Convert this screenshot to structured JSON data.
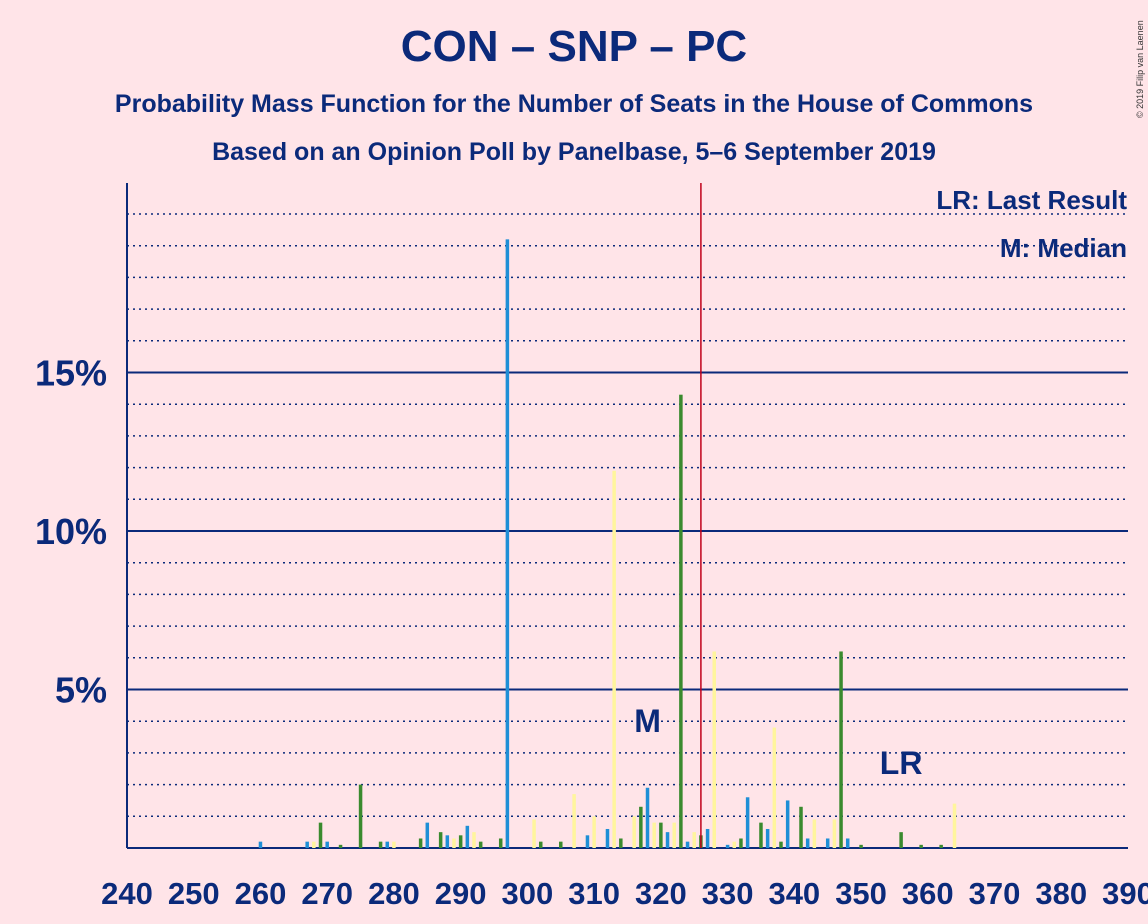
{
  "header": {
    "title": "CON – SNP – PC",
    "subtitle1": "Probability Mass Function for the Number of Seats in the House of Commons",
    "subtitle2": "Based on an Opinion Poll by Panelbase, 5–6 September 2019",
    "copyright": "© 2019 Filip van Laenen"
  },
  "colors": {
    "background": "#ffe4e8",
    "text": "#0b2a7a",
    "blue_bar": "#1f8fd6",
    "green_bar": "#3a8a2e",
    "yellow_bar": "#fff59d",
    "majority_line": "#c0001a"
  },
  "chart_data": {
    "type": "bar",
    "x_axis_range": [
      240,
      390
    ],
    "x_ticks": [
      240,
      250,
      260,
      270,
      280,
      290,
      300,
      310,
      320,
      330,
      340,
      350,
      360,
      370,
      380,
      390
    ],
    "y_axis_range_percent": [
      0,
      21
    ],
    "y_major_ticks": [
      {
        "value": 5,
        "label": "5%"
      },
      {
        "value": 10,
        "label": "10%"
      },
      {
        "value": 15,
        "label": "15%"
      }
    ],
    "y_minor_grid_step": 1,
    "majority_line_seat": 326,
    "median": {
      "seat": 318,
      "label": "M"
    },
    "last_result": {
      "seat": 356,
      "label": "LR"
    },
    "legend": {
      "placement": "top-right",
      "lines": [
        "LR: Last Result",
        "M: Median"
      ]
    },
    "points": [
      {
        "seat": 260,
        "value": 0.2,
        "color": "blue"
      },
      {
        "seat": 267,
        "value": 0.2,
        "color": "blue"
      },
      {
        "seat": 268,
        "value": 0.2,
        "color": "yellow"
      },
      {
        "seat": 269,
        "value": 0.8,
        "color": "green"
      },
      {
        "seat": 270,
        "value": 0.2,
        "color": "blue"
      },
      {
        "seat": 272,
        "value": 0.1,
        "color": "green"
      },
      {
        "seat": 275,
        "value": 2.0,
        "color": "green"
      },
      {
        "seat": 278,
        "value": 0.2,
        "color": "green"
      },
      {
        "seat": 279,
        "value": 0.2,
        "color": "blue"
      },
      {
        "seat": 280,
        "value": 0.2,
        "color": "yellow"
      },
      {
        "seat": 284,
        "value": 0.3,
        "color": "green"
      },
      {
        "seat": 285,
        "value": 0.8,
        "color": "blue"
      },
      {
        "seat": 287,
        "value": 0.5,
        "color": "green"
      },
      {
        "seat": 288,
        "value": 0.4,
        "color": "blue"
      },
      {
        "seat": 289,
        "value": 0.3,
        "color": "yellow"
      },
      {
        "seat": 290,
        "value": 0.4,
        "color": "green"
      },
      {
        "seat": 291,
        "value": 0.7,
        "color": "blue"
      },
      {
        "seat": 292,
        "value": 0.5,
        "color": "yellow"
      },
      {
        "seat": 293,
        "value": 0.2,
        "color": "green"
      },
      {
        "seat": 296,
        "value": 0.3,
        "color": "green"
      },
      {
        "seat": 297,
        "value": 19.2,
        "color": "blue"
      },
      {
        "seat": 301,
        "value": 0.9,
        "color": "yellow"
      },
      {
        "seat": 302,
        "value": 0.2,
        "color": "green"
      },
      {
        "seat": 305,
        "value": 0.2,
        "color": "green"
      },
      {
        "seat": 307,
        "value": 1.7,
        "color": "yellow"
      },
      {
        "seat": 309,
        "value": 0.4,
        "color": "blue"
      },
      {
        "seat": 310,
        "value": 1.0,
        "color": "yellow"
      },
      {
        "seat": 312,
        "value": 0.6,
        "color": "blue"
      },
      {
        "seat": 313,
        "value": 11.9,
        "color": "yellow"
      },
      {
        "seat": 314,
        "value": 0.3,
        "color": "green"
      },
      {
        "seat": 316,
        "value": 1.0,
        "color": "yellow"
      },
      {
        "seat": 317,
        "value": 1.3,
        "color": "green"
      },
      {
        "seat": 318,
        "value": 1.9,
        "color": "blue"
      },
      {
        "seat": 319,
        "value": 0.8,
        "color": "yellow"
      },
      {
        "seat": 320,
        "value": 0.8,
        "color": "green"
      },
      {
        "seat": 321,
        "value": 0.5,
        "color": "blue"
      },
      {
        "seat": 322,
        "value": 0.8,
        "color": "yellow"
      },
      {
        "seat": 323,
        "value": 14.3,
        "color": "green"
      },
      {
        "seat": 324,
        "value": 0.2,
        "color": "blue"
      },
      {
        "seat": 325,
        "value": 0.5,
        "color": "yellow"
      },
      {
        "seat": 326,
        "value": 0.4,
        "color": "green"
      },
      {
        "seat": 327,
        "value": 0.6,
        "color": "blue"
      },
      {
        "seat": 328,
        "value": 6.2,
        "color": "yellow"
      },
      {
        "seat": 330,
        "value": 0.1,
        "color": "blue"
      },
      {
        "seat": 331,
        "value": 0.2,
        "color": "yellow"
      },
      {
        "seat": 332,
        "value": 0.3,
        "color": "green"
      },
      {
        "seat": 333,
        "value": 1.6,
        "color": "blue"
      },
      {
        "seat": 335,
        "value": 0.8,
        "color": "green"
      },
      {
        "seat": 336,
        "value": 0.6,
        "color": "blue"
      },
      {
        "seat": 337,
        "value": 3.8,
        "color": "yellow"
      },
      {
        "seat": 338,
        "value": 0.2,
        "color": "green"
      },
      {
        "seat": 339,
        "value": 1.5,
        "color": "blue"
      },
      {
        "seat": 341,
        "value": 1.3,
        "color": "green"
      },
      {
        "seat": 342,
        "value": 0.3,
        "color": "blue"
      },
      {
        "seat": 343,
        "value": 0.9,
        "color": "yellow"
      },
      {
        "seat": 345,
        "value": 0.3,
        "color": "blue"
      },
      {
        "seat": 346,
        "value": 0.9,
        "color": "yellow"
      },
      {
        "seat": 347,
        "value": 6.2,
        "color": "green"
      },
      {
        "seat": 348,
        "value": 0.3,
        "color": "blue"
      },
      {
        "seat": 350,
        "value": 0.1,
        "color": "green"
      },
      {
        "seat": 356,
        "value": 0.5,
        "color": "green"
      },
      {
        "seat": 359,
        "value": 0.1,
        "color": "green"
      },
      {
        "seat": 362,
        "value": 0.1,
        "color": "green"
      },
      {
        "seat": 364,
        "value": 1.4,
        "color": "yellow"
      }
    ]
  }
}
